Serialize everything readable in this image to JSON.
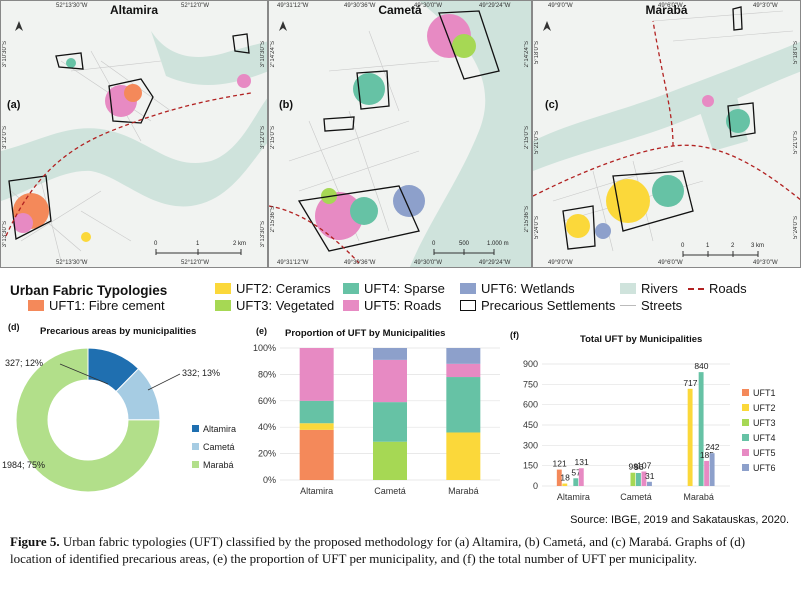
{
  "maps": [
    {
      "name": "Altamira",
      "tag": "(a)",
      "top_coords": [
        "52°13'30\"W",
        "52°12'0\"W"
      ],
      "bottom_coords": [
        "52°13'30\"W",
        "52°12'0\"W"
      ],
      "left_coords": [
        "3°10'30\"S",
        "3°12'0\"S",
        "3°13'30\"S"
      ],
      "right_coords": [
        "3°10'30\"S",
        "3°12'0\"S",
        "3°13'30\"S"
      ],
      "scale": [
        "0",
        "1",
        "2 km"
      ]
    },
    {
      "name": "Cametá",
      "tag": "(b)",
      "top_coords": [
        "49°31'12\"W",
        "49°30'36\"W",
        "49°30'0\"W",
        "49°29'24\"W"
      ],
      "bottom_coords": [
        "49°31'12\"W",
        "49°30'36\"W",
        "49°30'0\"W",
        "49°29'24\"W"
      ],
      "left_coords": [
        "2°14'24\"S",
        "2°15'0\"S",
        "2°15'36\"S"
      ],
      "right_coords": [
        "2°14'24\"S",
        "2°15'0\"S",
        "2°15'36\"S"
      ],
      "scale": [
        "0",
        "500",
        "1.000 m"
      ]
    },
    {
      "name": "Marabá",
      "tag": "(c)",
      "top_coords": [
        "49°9'0\"W",
        "49°6'0\"W",
        "49°3'0\"W"
      ],
      "bottom_coords": [
        "49°9'0\"W",
        "49°6'0\"W",
        "49°3'0\"W"
      ],
      "left_coords": [
        "5°18'0\"S",
        "5°21'0\"S",
        "5°24'0\"S"
      ],
      "right_coords": [
        "5°18'0\"S",
        "5°21'0\"S",
        "5°24'0\"S"
      ],
      "scale": [
        "0",
        "1",
        "2",
        "3 km"
      ]
    }
  ],
  "legend": {
    "title": "Urban Fabric Typologies",
    "items": [
      {
        "label": "UFT1: Fibre cement",
        "color": "#f4895a"
      },
      {
        "label": "UFT2: Ceramics",
        "color": "#fbd83a"
      },
      {
        "label": "UFT3: Vegetated",
        "color": "#a6d854"
      },
      {
        "label": "UFT4: Sparse",
        "color": "#66c2a5"
      },
      {
        "label": "UFT5: Roads",
        "color": "#e78ac3"
      },
      {
        "label": "UFT6: Wetlands",
        "color": "#8da0cb"
      },
      {
        "label": "Precarious Settlements",
        "color": "#ffffff"
      },
      {
        "label": "Rivers",
        "color": "#cfe3dc"
      },
      {
        "label": "Streets",
        "color": "#bbbbbb"
      },
      {
        "label": "Roads",
        "color": "#b22222"
      }
    ]
  },
  "charts": {
    "donut": {
      "tag": "(d)",
      "title": "Precarious areas by municipalities"
    },
    "stacked": {
      "tag": "(e)",
      "title": "Proportion of UFT by Municipalities"
    },
    "bars": {
      "tag": "(f)",
      "title": "Total UFT by Municipalities"
    }
  },
  "chart_data": [
    {
      "type": "pie",
      "title": "Precarious areas by municipalities",
      "categories": [
        "Altamira",
        "Cametá",
        "Marabá"
      ],
      "values": [
        327,
        332,
        1984
      ],
      "labels": [
        "327; 12%",
        "332; 13%",
        "1984; 75%"
      ],
      "colors": [
        "#1f6fb0",
        "#a6cce3",
        "#b2df8a"
      ],
      "legend": "right"
    },
    {
      "type": "bar",
      "stacked": true,
      "title": "Proportion of UFT by Municipalities",
      "categories": [
        "Altamira",
        "Cametá",
        "Marabá"
      ],
      "yticks": [
        "0%",
        "20%",
        "40%",
        "60%",
        "80%",
        "100%"
      ],
      "ylim": [
        0,
        100
      ],
      "series": [
        {
          "name": "UFT1",
          "color": "#f4895a",
          "values": [
            38,
            0,
            0
          ]
        },
        {
          "name": "UFT2",
          "color": "#fbd83a",
          "values": [
            5,
            0,
            36
          ]
        },
        {
          "name": "UFT3",
          "color": "#a6d854",
          "values": [
            0,
            29,
            0
          ]
        },
        {
          "name": "UFT4",
          "color": "#66c2a5",
          "values": [
            17,
            30,
            42
          ]
        },
        {
          "name": "UFT5",
          "color": "#e78ac3",
          "values": [
            40,
            32,
            10
          ]
        },
        {
          "name": "UFT6",
          "color": "#8da0cb",
          "values": [
            0,
            9,
            12
          ]
        }
      ]
    },
    {
      "type": "bar",
      "title": "Total UFT by Municipalities",
      "categories": [
        "Altamira",
        "Cametá",
        "Marabá"
      ],
      "yticks": [
        "0",
        "150",
        "300",
        "450",
        "600",
        "750",
        "900"
      ],
      "ylim": [
        0,
        900
      ],
      "legend": "right",
      "series": [
        {
          "name": "UFT1",
          "color": "#f4895a",
          "values": [
            121,
            0,
            0
          ],
          "labels": [
            "121",
            "",
            ""
          ]
        },
        {
          "name": "UFT2",
          "color": "#fbd83a",
          "values": [
            18,
            0,
            717
          ],
          "labels": [
            "18",
            "",
            "717"
          ]
        },
        {
          "name": "UFT3",
          "color": "#a6d854",
          "values": [
            0,
            98,
            0
          ],
          "labels": [
            "",
            "98",
            ""
          ]
        },
        {
          "name": "UFT4",
          "color": "#66c2a5",
          "values": [
            57,
            96,
            840
          ],
          "labels": [
            "57",
            "96",
            "840"
          ]
        },
        {
          "name": "UFT5",
          "color": "#e78ac3",
          "values": [
            131,
            107,
            185
          ],
          "labels": [
            "131",
            "107",
            "185"
          ]
        },
        {
          "name": "UFT6",
          "color": "#8da0cb",
          "values": [
            0,
            31,
            242
          ],
          "labels": [
            "",
            "31",
            "242"
          ]
        }
      ]
    }
  ],
  "source": "Source: IBGE, 2019 and Sakatauskas, 2020.",
  "caption": {
    "label": "Figure 5.",
    "text": "Urban fabric typologies (UFT) classified by the proposed methodology for (a) Altamira, (b) Cametá, and (c) Marabá. Graphs of (d) location of identified precarious areas, (e) the proportion of UFT per municipality, and (f) the total number of UFT per municipality."
  }
}
